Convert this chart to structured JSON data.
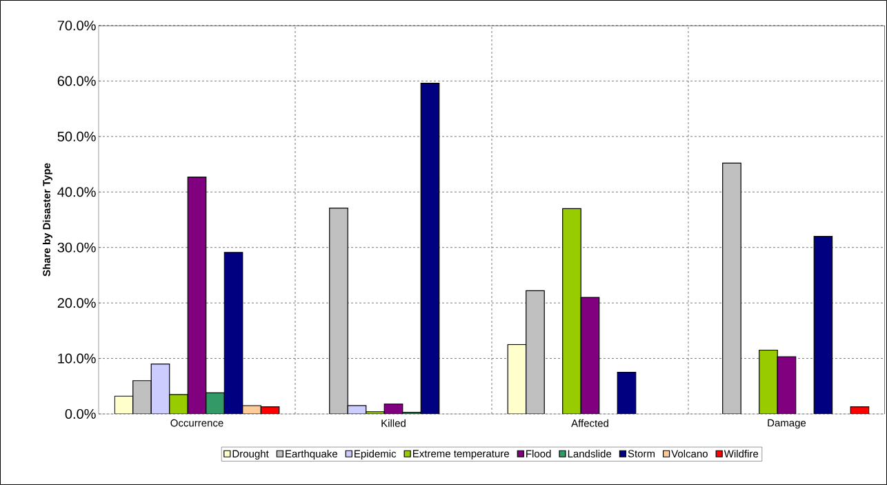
{
  "chart_data": {
    "type": "bar",
    "ylabel": "Share by Disaster Type",
    "categories": [
      "Occurrence",
      "Killed",
      "Affected",
      "Damage"
    ],
    "series": [
      {
        "name": "Drought",
        "color": "#ffffcc",
        "values": [
          3.2,
          null,
          12.5,
          null
        ]
      },
      {
        "name": "Earthquake",
        "color": "#c0c0c0",
        "values": [
          6.0,
          37.1,
          22.2,
          45.2
        ]
      },
      {
        "name": "Epidemic",
        "color": "#ccccff",
        "values": [
          9.0,
          1.5,
          null,
          null
        ]
      },
      {
        "name": "Extreme temperature",
        "color": "#99cc00",
        "values": [
          3.5,
          0.4,
          37.0,
          11.5
        ]
      },
      {
        "name": "Flood",
        "color": "#800080",
        "values": [
          42.7,
          1.8,
          21.0,
          10.3
        ]
      },
      {
        "name": "Landslide",
        "color": "#339966",
        "values": [
          3.8,
          0.3,
          null,
          null
        ]
      },
      {
        "name": "Storm",
        "color": "#000080",
        "values": [
          29.1,
          59.6,
          7.5,
          32.0
        ]
      },
      {
        "name": "Volcano",
        "color": "#ffcc99",
        "values": [
          1.5,
          null,
          null,
          null
        ]
      },
      {
        "name": "Wildfire",
        "color": "#ff0000",
        "values": [
          1.3,
          null,
          null,
          1.3
        ]
      }
    ],
    "ylim": [
      0,
      70
    ],
    "yticks": [
      {
        "value": 0,
        "label": "0.0%"
      },
      {
        "value": 10,
        "label": "10.0%"
      },
      {
        "value": 20,
        "label": "20.0%"
      },
      {
        "value": 30,
        "label": "30.0%"
      },
      {
        "value": 40,
        "label": "40.0%"
      },
      {
        "value": 50,
        "label": "50.0%"
      },
      {
        "value": 60,
        "label": "60.0%"
      },
      {
        "value": 70,
        "label": "70.0%"
      }
    ],
    "grid": true,
    "legend": "bottom"
  }
}
